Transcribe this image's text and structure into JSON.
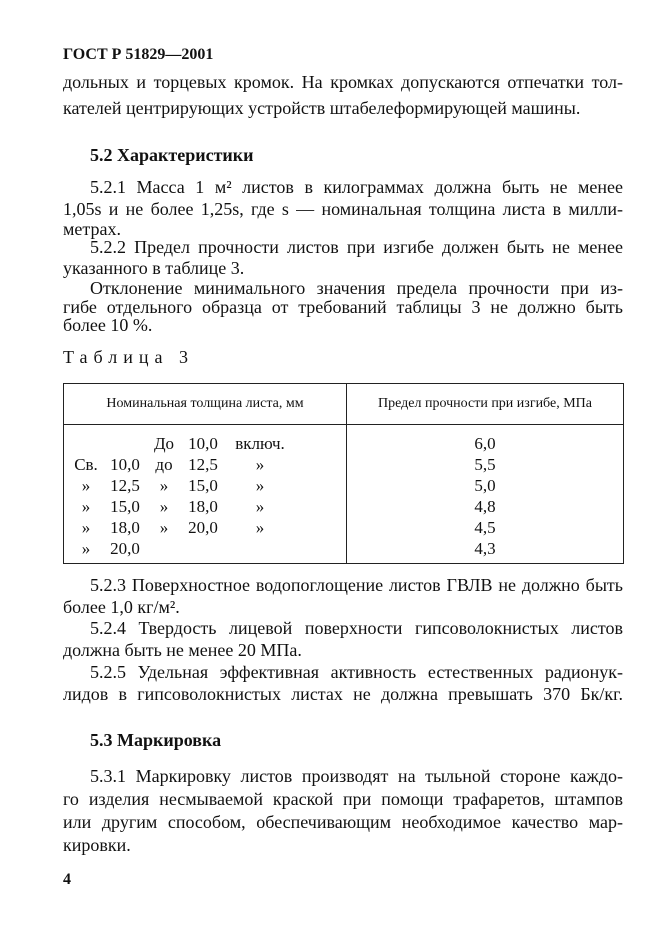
{
  "header": "ГОСТ Р 51829—2001",
  "intro": [
    "дольных и торцевых кромок. На кромках допускаются отпечатки тол-",
    "кателей центрирующих устройств штабелеформирующей машины."
  ],
  "s52": {
    "title": "5.2 Характеристики",
    "p1": [
      "5.2.1 Масса 1 м² листов в килограммах должна быть не менее",
      "1,05s и не более 1,25s, где s — номинальная толщина листа в милли-",
      "метрах."
    ],
    "p2": [
      "5.2.2 Предел прочности листов при изгибе должен быть не менее",
      "указанного в таблице 3."
    ],
    "p3": [
      "Отклонение минимального значения предела прочности при из-",
      "гибе отдельного образца от требований таблицы 3 не должно быть",
      "более 10 %."
    ]
  },
  "table": {
    "caption": "Таблица 3",
    "headers": [
      "Номинальная толщина листа, мм",
      "Предел прочности при изгибе, МПа"
    ],
    "rows": [
      {
        "c": [
          "",
          "",
          "До",
          "10,0",
          "включ."
        ],
        "v": "6,0"
      },
      {
        "c": [
          "Св.",
          "10,0",
          "до",
          "12,5",
          "»"
        ],
        "v": "5,5"
      },
      {
        "c": [
          "»",
          "12,5",
          "»",
          "15,0",
          "»"
        ],
        "v": "5,0"
      },
      {
        "c": [
          "»",
          "15,0",
          "»",
          "18,0",
          "»"
        ],
        "v": "4,8"
      },
      {
        "c": [
          "»",
          "18,0",
          "»",
          "20,0",
          "»"
        ],
        "v": "4,5"
      },
      {
        "c": [
          "»",
          "20,0",
          "",
          "",
          ""
        ],
        "v": "4,3"
      }
    ]
  },
  "after": {
    "p523": [
      "5.2.3 Поверхностное водопоглощение листов ГВЛВ не должно быть",
      "более 1,0 кг/м²."
    ],
    "p524": [
      "5.2.4 Твердость лицевой поверхности гипсоволокнистых листов",
      "должна быть не менее 20 МПа."
    ],
    "p525": [
      "5.2.5 Удельная эффективная активность естественных радионук-",
      "лидов в гипсоволокнистых листах не должна превышать 370 Бк/кг."
    ]
  },
  "s53": {
    "title": "5.3 Маркировка",
    "p1": [
      "5.3.1 Маркировку листов производят на тыльной стороне каждо-",
      "го изделия несмываемой краской при помощи трафаретов, штампов",
      "или другим способом, обеспечивающим необходимое качество мар-",
      "кировки."
    ]
  },
  "page_number": "4"
}
